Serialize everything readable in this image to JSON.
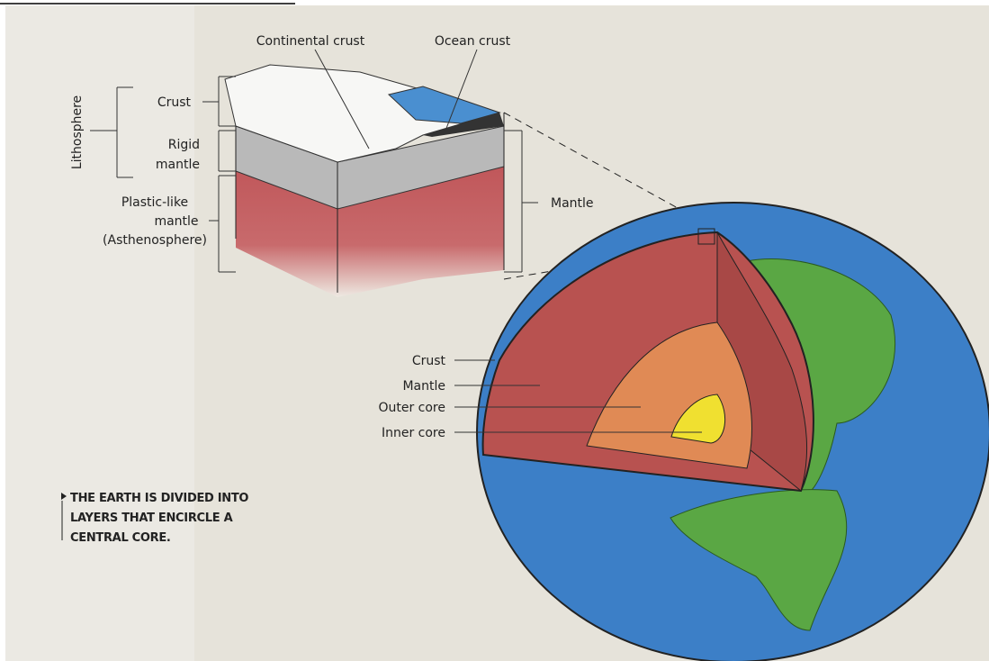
{
  "block": {
    "continental_crust": "Continental crust",
    "ocean_crust": "Ocean crust",
    "lithosphere": "Lithosphere",
    "crust": "Crust",
    "rigid_mantle": [
      "Rigid",
      "mantle"
    ],
    "plastic_mantle": [
      "Plastic-like",
      "mantle",
      "(Asthenosphere)"
    ],
    "mantle": "Mantle"
  },
  "earth": {
    "labels": [
      "Crust",
      "Mantle",
      "Outer core",
      "Inner core"
    ]
  },
  "caption": [
    "THE EARTH IS DIVIDED INTO",
    "LAYERS THAT ENCIRCLE A",
    "CENTRAL CORE."
  ]
}
